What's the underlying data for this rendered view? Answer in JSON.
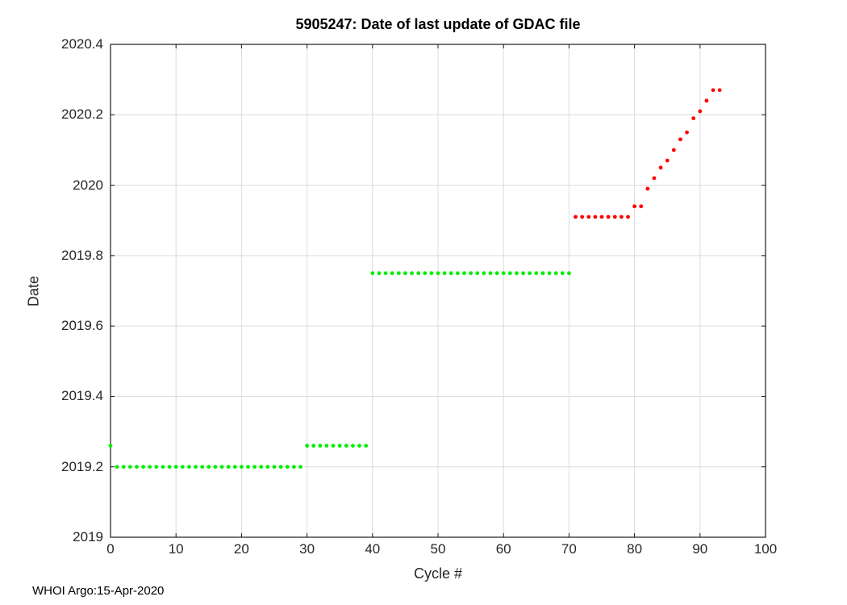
{
  "footer": "WHOI Argo:15-Apr-2020",
  "chart_data": {
    "type": "scatter",
    "title": "5905247: Date of last update of GDAC file",
    "xlabel": "Cycle #",
    "ylabel": "Date",
    "xlim": [
      0,
      100
    ],
    "ylim": [
      2019,
      2020.4
    ],
    "x_ticks": [
      0,
      10,
      20,
      30,
      40,
      50,
      60,
      70,
      80,
      90,
      100
    ],
    "y_ticks": [
      2019,
      2019.2,
      2019.4,
      2019.6,
      2019.8,
      2020,
      2020.2,
      2020.4
    ],
    "y_tick_labels": [
      "2019",
      "2019.2",
      "2019.4",
      "2019.6",
      "2019.8",
      "2020",
      "2020.2",
      "2020.4"
    ],
    "grid": true,
    "grid_color": "#dcdcdc",
    "axis_color": "#1a1a1a",
    "marker_radius": 2.4,
    "series": [
      {
        "name": "green-updates",
        "color": "#00ee00",
        "points": [
          [
            0,
            2019.26
          ],
          [
            1,
            2019.2
          ],
          [
            2,
            2019.2
          ],
          [
            3,
            2019.2
          ],
          [
            4,
            2019.2
          ],
          [
            5,
            2019.2
          ],
          [
            6,
            2019.2
          ],
          [
            7,
            2019.2
          ],
          [
            8,
            2019.2
          ],
          [
            9,
            2019.2
          ],
          [
            10,
            2019.2
          ],
          [
            11,
            2019.2
          ],
          [
            12,
            2019.2
          ],
          [
            13,
            2019.2
          ],
          [
            14,
            2019.2
          ],
          [
            15,
            2019.2
          ],
          [
            16,
            2019.2
          ],
          [
            17,
            2019.2
          ],
          [
            18,
            2019.2
          ],
          [
            19,
            2019.2
          ],
          [
            20,
            2019.2
          ],
          [
            21,
            2019.2
          ],
          [
            22,
            2019.2
          ],
          [
            23,
            2019.2
          ],
          [
            24,
            2019.2
          ],
          [
            25,
            2019.2
          ],
          [
            26,
            2019.2
          ],
          [
            27,
            2019.2
          ],
          [
            28,
            2019.2
          ],
          [
            29,
            2019.2
          ],
          [
            30,
            2019.26
          ],
          [
            31,
            2019.26
          ],
          [
            32,
            2019.26
          ],
          [
            33,
            2019.26
          ],
          [
            34,
            2019.26
          ],
          [
            35,
            2019.26
          ],
          [
            36,
            2019.26
          ],
          [
            37,
            2019.26
          ],
          [
            38,
            2019.26
          ],
          [
            39,
            2019.26
          ],
          [
            40,
            2019.75
          ],
          [
            41,
            2019.75
          ],
          [
            42,
            2019.75
          ],
          [
            43,
            2019.75
          ],
          [
            44,
            2019.75
          ],
          [
            45,
            2019.75
          ],
          [
            46,
            2019.75
          ],
          [
            47,
            2019.75
          ],
          [
            48,
            2019.75
          ],
          [
            49,
            2019.75
          ],
          [
            50,
            2019.75
          ],
          [
            51,
            2019.75
          ],
          [
            52,
            2019.75
          ],
          [
            53,
            2019.75
          ],
          [
            54,
            2019.75
          ],
          [
            55,
            2019.75
          ],
          [
            56,
            2019.75
          ],
          [
            57,
            2019.75
          ],
          [
            58,
            2019.75
          ],
          [
            59,
            2019.75
          ],
          [
            60,
            2019.75
          ],
          [
            61,
            2019.75
          ],
          [
            62,
            2019.75
          ],
          [
            63,
            2019.75
          ],
          [
            64,
            2019.75
          ],
          [
            65,
            2019.75
          ],
          [
            66,
            2019.75
          ],
          [
            67,
            2019.75
          ],
          [
            68,
            2019.75
          ],
          [
            69,
            2019.75
          ],
          [
            70,
            2019.75
          ]
        ]
      },
      {
        "name": "red-updates",
        "color": "#ff0000",
        "points": [
          [
            71,
            2019.91
          ],
          [
            72,
            2019.91
          ],
          [
            73,
            2019.91
          ],
          [
            74,
            2019.91
          ],
          [
            75,
            2019.91
          ],
          [
            76,
            2019.91
          ],
          [
            77,
            2019.91
          ],
          [
            78,
            2019.91
          ],
          [
            79,
            2019.91
          ],
          [
            80,
            2019.94
          ],
          [
            81,
            2019.94
          ],
          [
            82,
            2019.99
          ],
          [
            83,
            2020.02
          ],
          [
            84,
            2020.05
          ],
          [
            85,
            2020.07
          ],
          [
            86,
            2020.1
          ],
          [
            87,
            2020.13
          ],
          [
            88,
            2020.15
          ],
          [
            89,
            2020.19
          ],
          [
            90,
            2020.21
          ],
          [
            91,
            2020.24
          ],
          [
            92,
            2020.27
          ],
          [
            93,
            2020.27
          ]
        ]
      }
    ]
  }
}
